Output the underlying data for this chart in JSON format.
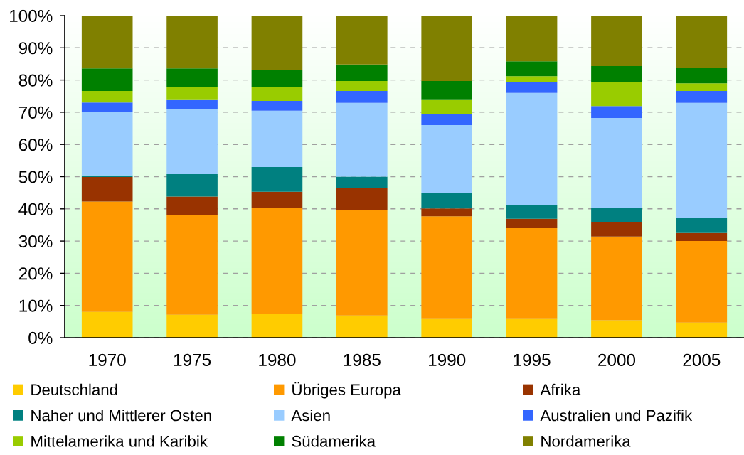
{
  "chart_data": {
    "type": "bar",
    "stacked": true,
    "categories": [
      "1970",
      "1975",
      "1980",
      "1985",
      "1990",
      "1995",
      "2000",
      "2005"
    ],
    "ylim": [
      0,
      100
    ],
    "yticks": [
      {
        "value": 0,
        "label": "0%"
      },
      {
        "value": 10,
        "label": "10%"
      },
      {
        "value": 20,
        "label": "20%"
      },
      {
        "value": 30,
        "label": "30%"
      },
      {
        "value": 40,
        "label": "40%"
      },
      {
        "value": 50,
        "label": "50%"
      },
      {
        "value": 60,
        "label": "60%"
      },
      {
        "value": 70,
        "label": "70%"
      },
      {
        "value": 80,
        "label": "80%"
      },
      {
        "value": 90,
        "label": "90%"
      },
      {
        "value": 100,
        "label": "100%"
      }
    ],
    "grid": "y",
    "legend": "bottom",
    "series": [
      {
        "name": "Deutschland",
        "color": "#ffcc00",
        "values": [
          8.0,
          7.1,
          7.5,
          6.9,
          6.0,
          6.0,
          5.4,
          4.7
        ]
      },
      {
        "name": "Übriges Europa",
        "color": "#ff9900",
        "values": [
          34.3,
          31.0,
          32.8,
          32.8,
          31.7,
          28.0,
          26.0,
          25.3
        ]
      },
      {
        "name": "Afrika",
        "color": "#993300",
        "values": [
          7.6,
          5.7,
          5.0,
          6.7,
          2.4,
          2.9,
          4.6,
          2.5
        ]
      },
      {
        "name": "Naher und Mittlerer Osten",
        "color": "#008080",
        "values": [
          0.5,
          7.0,
          7.7,
          3.6,
          4.7,
          4.3,
          4.3,
          4.8
        ]
      },
      {
        "name": "Asien",
        "color": "#99ccff",
        "values": [
          19.6,
          20.1,
          17.5,
          22.9,
          21.2,
          34.8,
          27.9,
          35.6
        ]
      },
      {
        "name": "Australien und Pazifik",
        "color": "#3366ff",
        "values": [
          3.0,
          3.1,
          3.0,
          3.7,
          3.4,
          3.4,
          3.7,
          3.7
        ]
      },
      {
        "name": "Mittelamerika und Karibik",
        "color": "#99cc00",
        "values": [
          3.6,
          3.7,
          4.2,
          3.1,
          4.6,
          1.8,
          7.4,
          2.4
        ]
      },
      {
        "name": "Südamerika",
        "color": "#008000",
        "values": [
          7.0,
          5.9,
          5.4,
          5.1,
          5.7,
          4.6,
          5.0,
          4.9
        ]
      },
      {
        "name": "Nordamerika",
        "color": "#808000",
        "values": [
          16.4,
          16.4,
          16.9,
          15.2,
          20.3,
          14.2,
          15.7,
          16.1
        ]
      }
    ]
  }
}
